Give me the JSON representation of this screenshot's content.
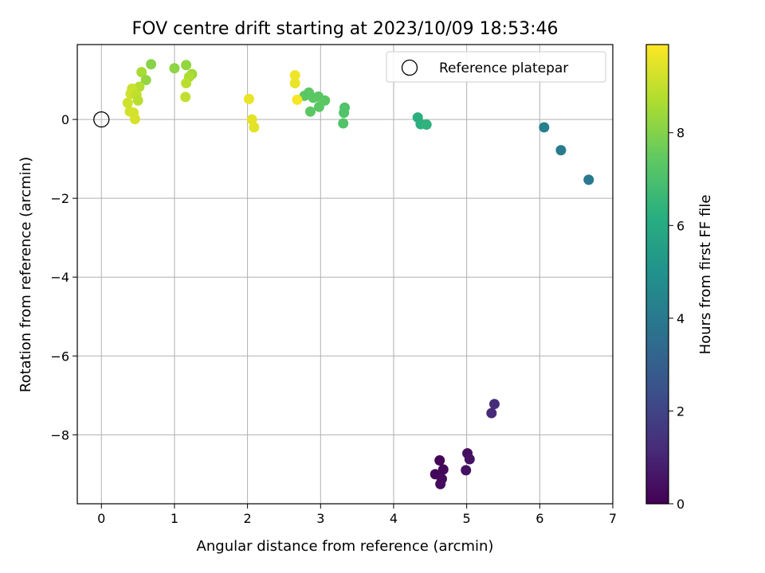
{
  "chart_data": {
    "type": "scatter",
    "title": "FOV centre drift starting at 2023/10/09 18:53:46",
    "xlabel": "Angular distance from reference (arcmin)",
    "ylabel": "Rotation from reference (arcmin)",
    "xlim": [
      -0.33,
      7.0
    ],
    "ylim": [
      -9.75,
      1.9
    ],
    "xticks": [
      0,
      1,
      2,
      3,
      4,
      5,
      6,
      7
    ],
    "yticks": [
      -8,
      -6,
      -4,
      -2,
      0
    ],
    "grid": true,
    "legend": {
      "placement": "top-right",
      "entries": [
        "Reference platepar"
      ]
    },
    "reference_point": {
      "x": 0,
      "y": 0
    },
    "colorbar": {
      "label": "Hours from first FF file",
      "range": [
        0,
        9.9
      ],
      "ticks": [
        0,
        2,
        4,
        6,
        8
      ],
      "colormap": "viridis"
    },
    "points": [
      {
        "x": 4.63,
        "y": -8.65,
        "c": 0.1
      },
      {
        "x": 4.57,
        "y": -9.0,
        "c": 0.15
      },
      {
        "x": 4.68,
        "y": -8.88,
        "c": 0.2
      },
      {
        "x": 4.66,
        "y": -9.12,
        "c": 0.25
      },
      {
        "x": 4.64,
        "y": -9.25,
        "c": 0.3
      },
      {
        "x": 5.01,
        "y": -8.47,
        "c": 0.4
      },
      {
        "x": 5.04,
        "y": -8.62,
        "c": 0.5
      },
      {
        "x": 4.99,
        "y": -8.9,
        "c": 0.45
      },
      {
        "x": 5.34,
        "y": -7.45,
        "c": 1.2
      },
      {
        "x": 5.38,
        "y": -7.22,
        "c": 1.3
      },
      {
        "x": 6.06,
        "y": -0.2,
        "c": 4.3
      },
      {
        "x": 6.29,
        "y": -0.78,
        "c": 4.1
      },
      {
        "x": 6.67,
        "y": -1.53,
        "c": 4.0
      },
      {
        "x": 4.33,
        "y": 0.05,
        "c": 6.3
      },
      {
        "x": 4.37,
        "y": -0.12,
        "c": 6.3
      },
      {
        "x": 4.45,
        "y": -0.13,
        "c": 6.4
      },
      {
        "x": 3.31,
        "y": -0.1,
        "c": 7.2
      },
      {
        "x": 3.32,
        "y": 0.17,
        "c": 7.2
      },
      {
        "x": 3.33,
        "y": 0.3,
        "c": 7.2
      },
      {
        "x": 2.78,
        "y": 0.6,
        "c": 7.4
      },
      {
        "x": 2.84,
        "y": 0.68,
        "c": 7.4
      },
      {
        "x": 2.9,
        "y": 0.55,
        "c": 7.4
      },
      {
        "x": 2.97,
        "y": 0.58,
        "c": 7.4
      },
      {
        "x": 3.06,
        "y": 0.48,
        "c": 7.4
      },
      {
        "x": 2.98,
        "y": 0.32,
        "c": 7.4
      },
      {
        "x": 2.86,
        "y": 0.2,
        "c": 7.4
      },
      {
        "x": 2.65,
        "y": 1.12,
        "c": 9.7
      },
      {
        "x": 2.65,
        "y": 0.92,
        "c": 9.6
      },
      {
        "x": 2.68,
        "y": 0.5,
        "c": 9.8
      },
      {
        "x": 2.02,
        "y": 0.52,
        "c": 9.6
      },
      {
        "x": 2.06,
        "y": 0.0,
        "c": 9.5
      },
      {
        "x": 2.09,
        "y": -0.2,
        "c": 9.5
      },
      {
        "x": 1.0,
        "y": 1.3,
        "c": 8.2
      },
      {
        "x": 1.16,
        "y": 1.38,
        "c": 8.3
      },
      {
        "x": 1.24,
        "y": 1.15,
        "c": 8.5
      },
      {
        "x": 1.2,
        "y": 1.08,
        "c": 8.7
      },
      {
        "x": 1.16,
        "y": 0.92,
        "c": 8.9
      },
      {
        "x": 1.15,
        "y": 0.57,
        "c": 9.0
      },
      {
        "x": 0.68,
        "y": 1.4,
        "c": 8.1
      },
      {
        "x": 0.55,
        "y": 1.2,
        "c": 8.6
      },
      {
        "x": 0.61,
        "y": 1.0,
        "c": 8.3
      },
      {
        "x": 0.52,
        "y": 0.83,
        "c": 8.8
      },
      {
        "x": 0.42,
        "y": 0.78,
        "c": 9.1
      },
      {
        "x": 0.4,
        "y": 0.65,
        "c": 9.2
      },
      {
        "x": 0.48,
        "y": 0.62,
        "c": 9.0
      },
      {
        "x": 0.36,
        "y": 0.42,
        "c": 9.2
      },
      {
        "x": 0.5,
        "y": 0.48,
        "c": 8.9
      },
      {
        "x": 0.39,
        "y": 0.2,
        "c": 9.2
      },
      {
        "x": 0.44,
        "y": 0.17,
        "c": 9.3
      },
      {
        "x": 0.46,
        "y": 0.01,
        "c": 9.3
      }
    ]
  }
}
